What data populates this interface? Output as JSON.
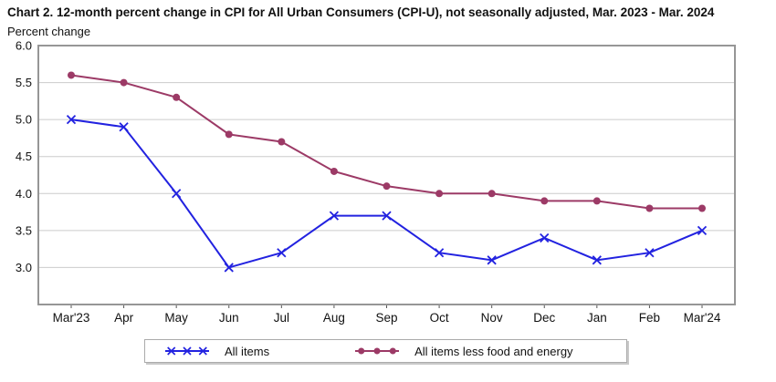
{
  "chart_data": {
    "type": "line",
    "title": "Chart 2. 12-month percent change in CPI for All Urban Consumers (CPI-U), not seasonally adjusted, Mar. 2023 - Mar. 2024",
    "ylabel": "Percent change",
    "xlabel": "",
    "categories": [
      "Mar'23",
      "Apr",
      "May",
      "Jun",
      "Jul",
      "Aug",
      "Sep",
      "Oct",
      "Nov",
      "Dec",
      "Jan",
      "Feb",
      "Mar'24"
    ],
    "series": [
      {
        "name": "All items",
        "marker": "x",
        "color": "#2222e0",
        "values": [
          5.0,
          4.9,
          4.0,
          3.0,
          3.2,
          3.7,
          3.7,
          3.2,
          3.1,
          3.4,
          3.1,
          3.2,
          3.5
        ]
      },
      {
        "name": "All items less food and energy",
        "marker": "circle",
        "color": "#9c3a66",
        "values": [
          5.6,
          5.5,
          5.3,
          4.8,
          4.7,
          4.3,
          4.1,
          4.0,
          4.0,
          3.9,
          3.9,
          3.8,
          3.8
        ]
      }
    ],
    "ylim": [
      2.5,
      6.0
    ],
    "yticks": [
      6.0,
      5.5,
      5.0,
      4.5,
      4.0,
      3.5,
      3.0
    ],
    "grid": true,
    "legend_position": "bottom",
    "grid_color": "#cccccc",
    "axis_color": "#969696",
    "tick_color": "#555555",
    "text_color": "#111111"
  }
}
